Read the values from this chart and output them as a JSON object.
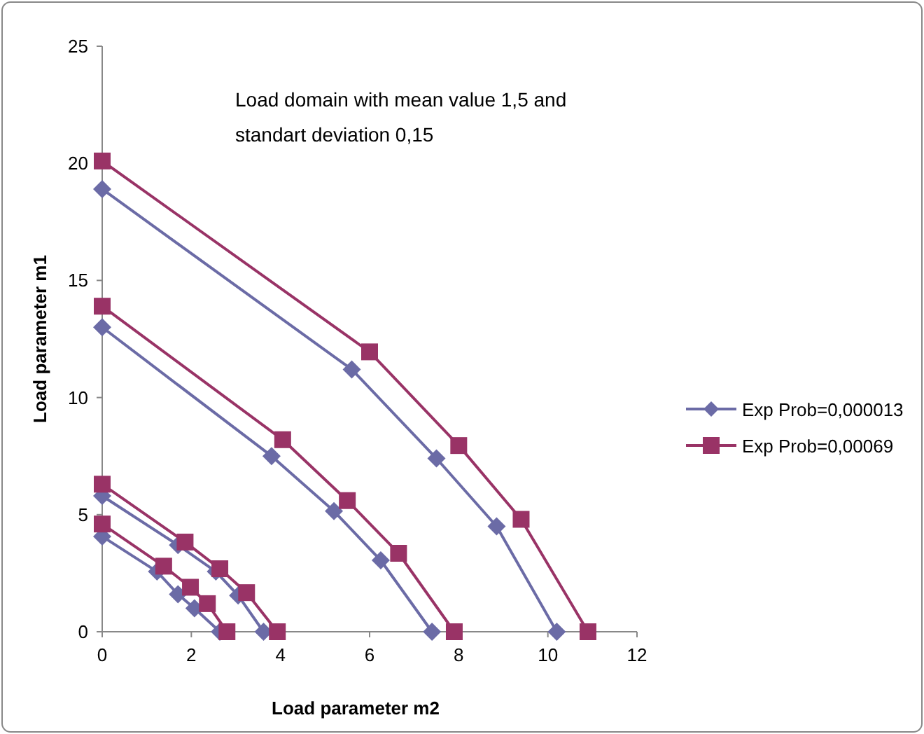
{
  "chart_data": {
    "type": "line",
    "xlabel": "Load parameter m2",
    "ylabel": "Load parameter m1",
    "annotations": [
      "Load domain with mean value 1,5 and standart deviation 0,15"
    ],
    "xlim": [
      0,
      12
    ],
    "xticks": [
      0,
      2,
      4,
      6,
      8,
      10,
      12
    ],
    "ylim": [
      0,
      25
    ],
    "yticks": [
      0,
      5,
      10,
      15,
      20,
      25
    ],
    "grid": false,
    "legend": "right",
    "line_style": "solid",
    "series": [
      {
        "name": "Exp Prob=0,000013",
        "color": "#6b6ba6",
        "marker": "diamond",
        "x": [
          0,
          5.6,
          7.5,
          8.85,
          10.2,
          null,
          0,
          3.8,
          5.2,
          6.25,
          7.4,
          null,
          0,
          1.7,
          2.55,
          3.05,
          3.62,
          null,
          0,
          1.23,
          1.7,
          2.07,
          2.64
        ],
        "values": [
          18.9,
          11.2,
          7.4,
          4.5,
          0,
          null,
          13.0,
          7.5,
          5.15,
          3.05,
          0,
          null,
          5.8,
          3.7,
          2.57,
          1.55,
          0,
          null,
          4.07,
          2.57,
          1.6,
          1.0,
          0
        ]
      },
      {
        "name": "Exp Prob=0,00069",
        "color": "#993366",
        "marker": "square",
        "x": [
          0,
          6.0,
          8.0,
          9.4,
          10.9,
          null,
          0,
          4.05,
          5.5,
          6.65,
          7.9,
          null,
          0,
          1.86,
          2.64,
          3.24,
          3.93,
          null,
          0,
          1.38,
          1.98,
          2.36,
          2.8
        ],
        "values": [
          20.1,
          11.95,
          7.95,
          4.8,
          0,
          null,
          13.9,
          8.2,
          5.6,
          3.35,
          0,
          null,
          6.3,
          3.83,
          2.69,
          1.67,
          0,
          null,
          4.6,
          2.8,
          1.9,
          1.2,
          0
        ]
      }
    ]
  }
}
